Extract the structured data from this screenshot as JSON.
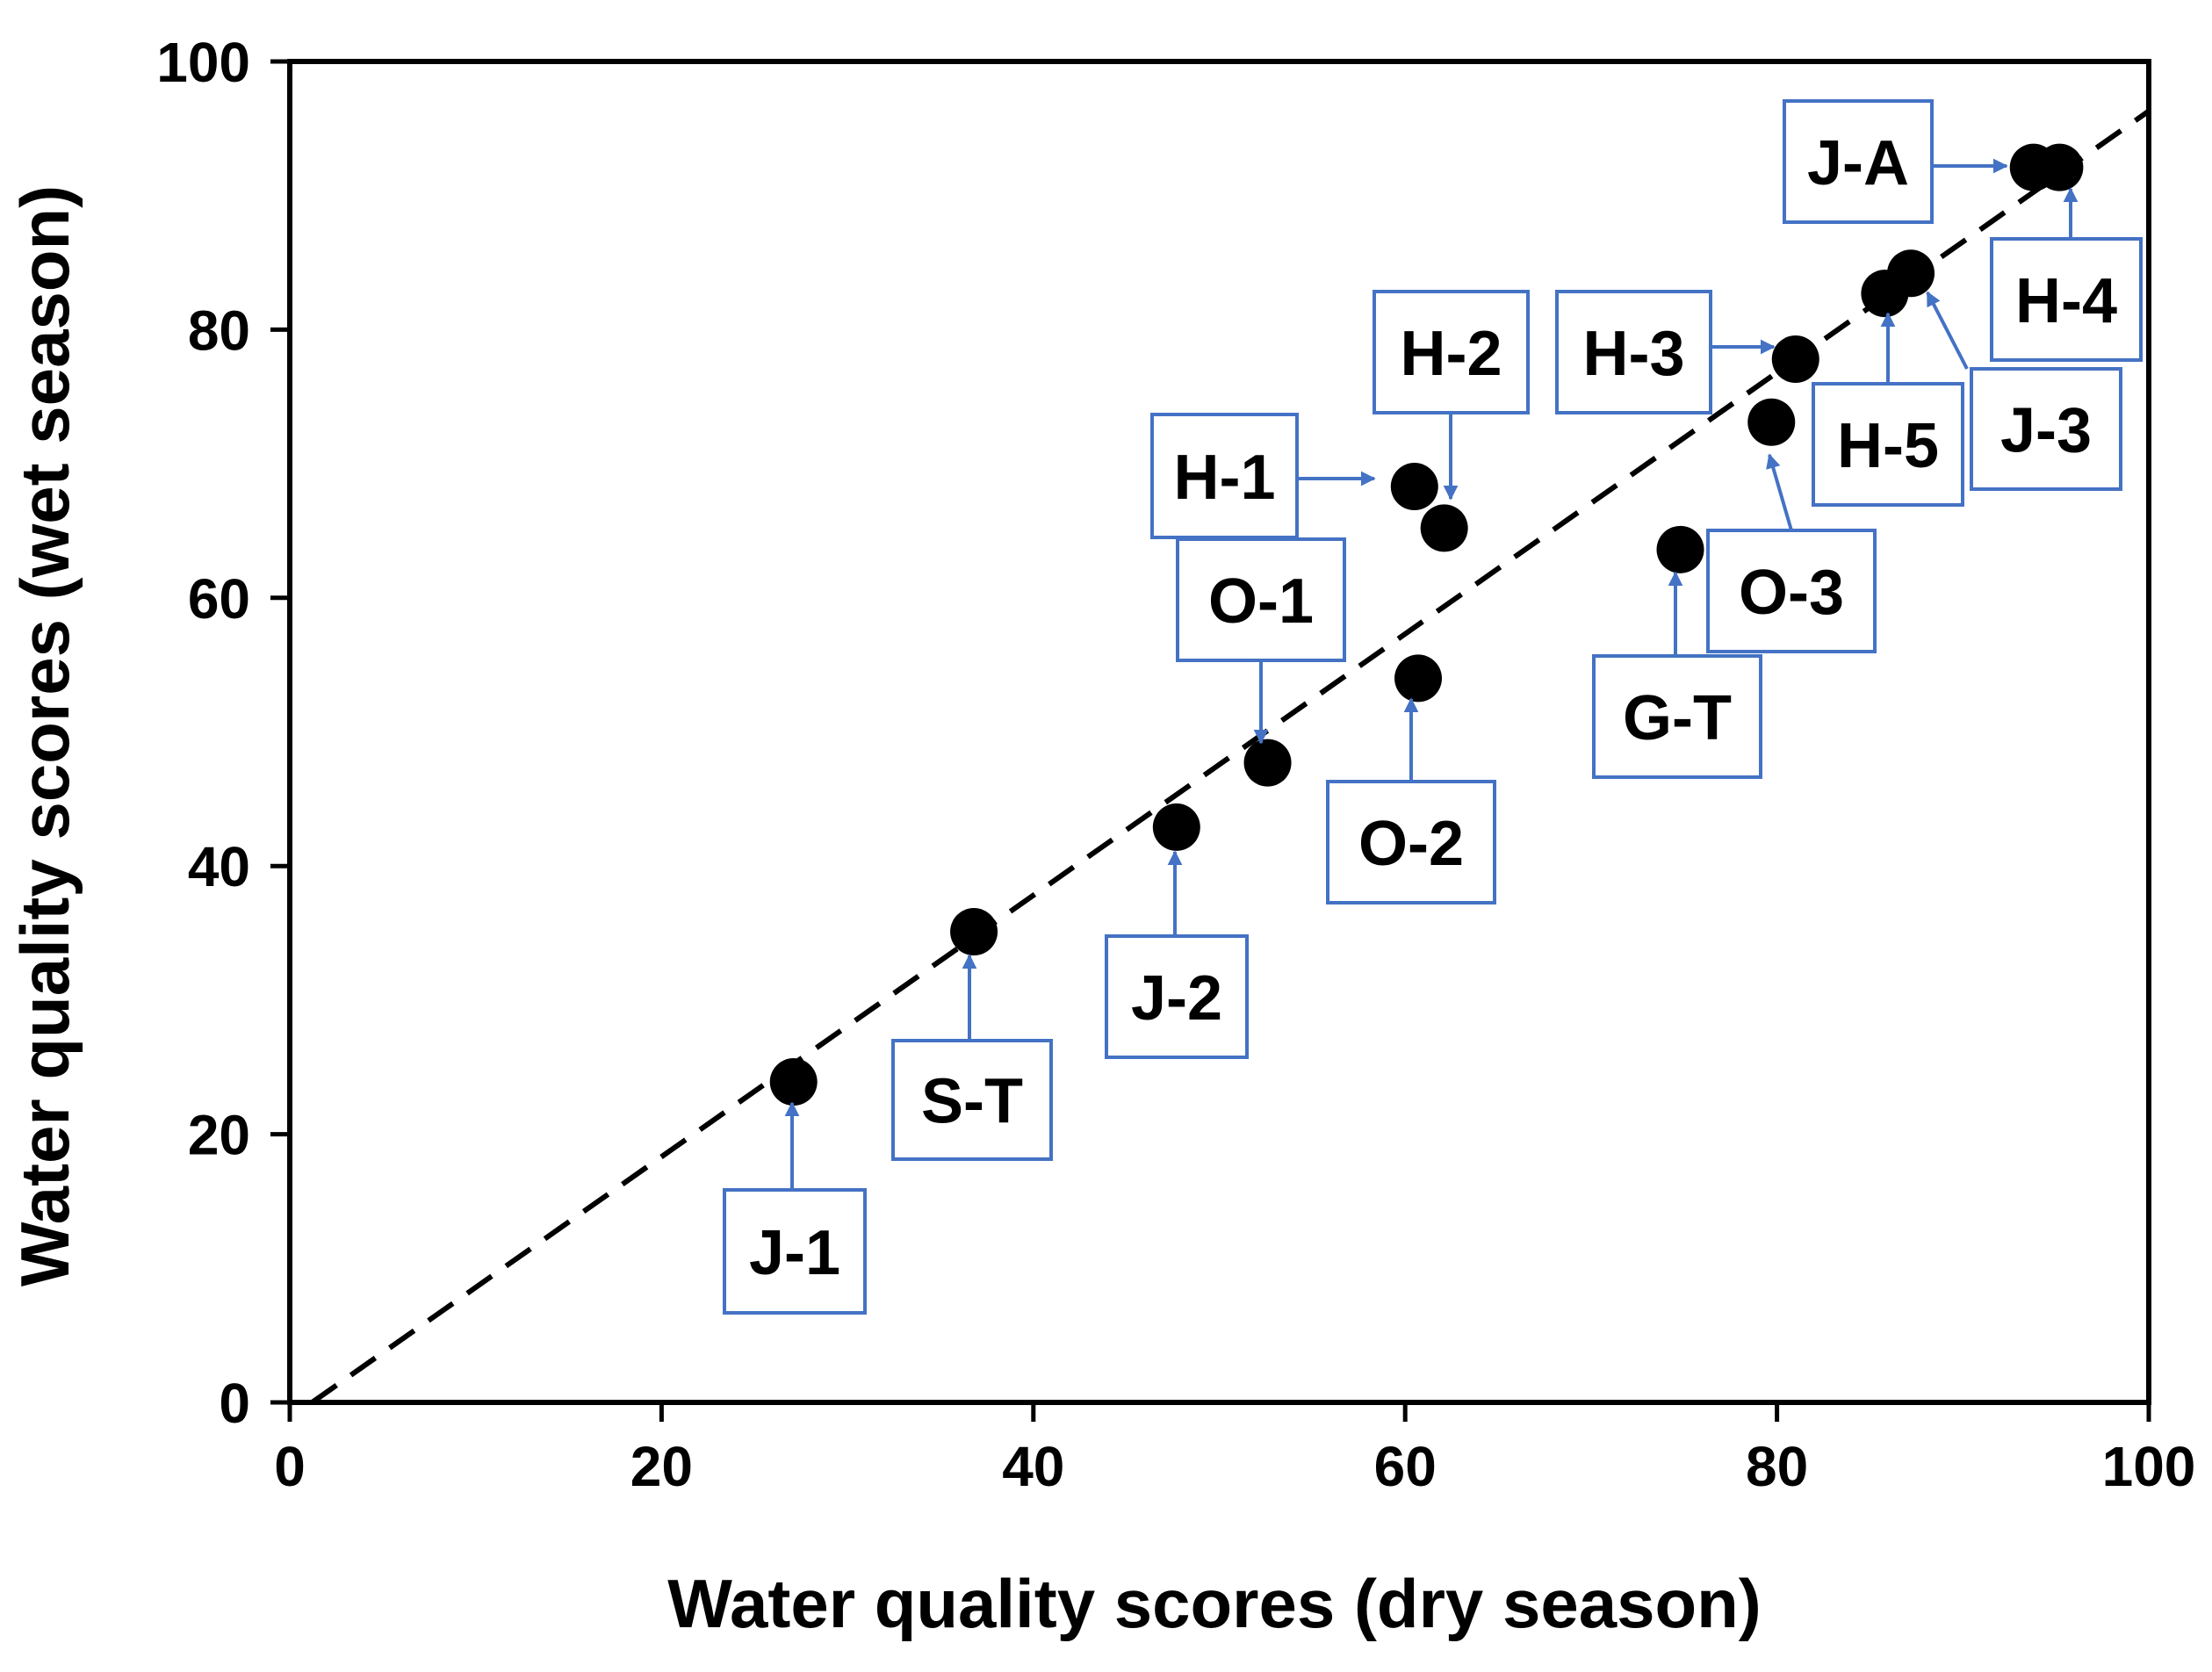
{
  "chart_data": {
    "type": "scatter",
    "xlabel": "Water quality scores (dry season)",
    "ylabel": "Water quality scores (wet season)",
    "xlim": [
      0,
      100
    ],
    "ylim": [
      0,
      100
    ],
    "x_ticks": [
      0,
      20,
      40,
      60,
      80,
      100
    ],
    "y_ticks": [
      0,
      20,
      40,
      60,
      80,
      100
    ],
    "grid": false,
    "trendline": {
      "style": "dashed",
      "from": [
        1.2,
        0
      ],
      "to": [
        100,
        96.3
      ]
    },
    "points": [
      {
        "label": "J-1",
        "x": 27.1,
        "y": 23.9
      },
      {
        "label": "S-T",
        "x": 36.8,
        "y": 35.1
      },
      {
        "label": "J-2",
        "x": 47.7,
        "y": 42.9
      },
      {
        "label": "O-1",
        "x": 52.6,
        "y": 47.7
      },
      {
        "label": "O-2",
        "x": 60.7,
        "y": 54.0
      },
      {
        "label": "H-1",
        "x": 60.5,
        "y": 68.3
      },
      {
        "label": "H-2",
        "x": 62.1,
        "y": 65.2
      },
      {
        "label": "G-T",
        "x": 74.8,
        "y": 63.6
      },
      {
        "label": "O-3",
        "x": 79.7,
        "y": 73.1
      },
      {
        "label": "H-3",
        "x": 81.0,
        "y": 77.8
      },
      {
        "label": "H-5",
        "x": 85.8,
        "y": 82.7
      },
      {
        "label": "J-3",
        "x": 87.2,
        "y": 84.2
      },
      {
        "label": "J-A",
        "x": 93.8,
        "y": 92.1
      },
      {
        "label": "H-4",
        "x": 95.2,
        "y": 92.1
      }
    ]
  },
  "colors": {
    "point": "#000000",
    "annotation": "#4472c4",
    "axis": "#000000"
  }
}
